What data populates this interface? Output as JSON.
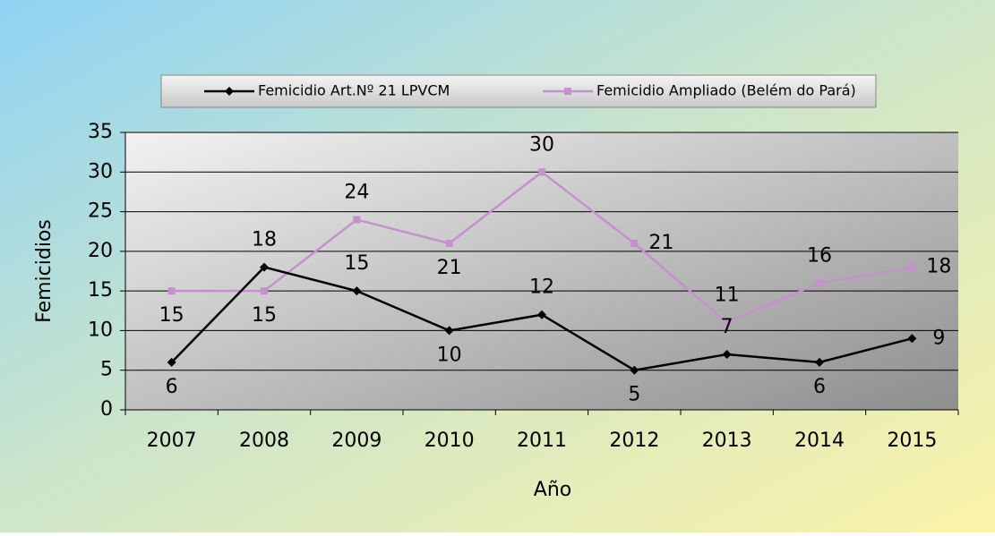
{
  "chart_data": {
    "type": "line",
    "x_label": "Año",
    "y_label": "Femicidios",
    "categories": [
      "2007",
      "2008",
      "2009",
      "2010",
      "2011",
      "2012",
      "2013",
      "2014",
      "2015"
    ],
    "series": [
      {
        "name": "Femicidio Art.Nº 21 LPVCM",
        "color": "#000000",
        "marker": "diamond",
        "values": [
          6,
          18,
          15,
          10,
          12,
          5,
          7,
          6,
          9
        ]
      },
      {
        "name": "Femicidio Ampliado (Belém do Pará)",
        "color": "#c690cf",
        "marker": "square",
        "values": [
          15,
          15,
          24,
          21,
          30,
          21,
          11,
          16,
          18
        ]
      }
    ],
    "ylim": [
      0,
      35
    ],
    "yticks": [
      0,
      5,
      10,
      15,
      20,
      25,
      30,
      35
    ],
    "grid": true,
    "legend": "top"
  }
}
